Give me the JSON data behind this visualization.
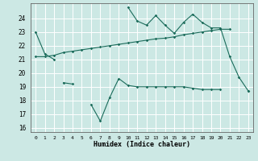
{
  "xlabel": "Humidex (Indice chaleur)",
  "bg_color": "#cce8e4",
  "line_color": "#1a6b5a",
  "grid_color": "#ffffff",
  "x": [
    0,
    1,
    2,
    3,
    4,
    5,
    6,
    7,
    8,
    9,
    10,
    11,
    12,
    13,
    14,
    15,
    16,
    17,
    18,
    19,
    20,
    21,
    22,
    23
  ],
  "y1": [
    23.0,
    21.4,
    21.0,
    null,
    null,
    null,
    null,
    null,
    null,
    null,
    24.8,
    23.8,
    23.5,
    24.2,
    23.5,
    22.9,
    23.7,
    24.3,
    23.7,
    23.3,
    23.3,
    21.2,
    19.7,
    18.7
  ],
  "y2": [
    21.2,
    21.2,
    21.3,
    21.5,
    21.6,
    21.7,
    21.8,
    21.9,
    22.0,
    22.1,
    22.2,
    22.3,
    22.4,
    22.5,
    22.55,
    22.65,
    22.8,
    22.9,
    23.0,
    23.1,
    23.2,
    23.2,
    null,
    null
  ],
  "y3": [
    null,
    null,
    null,
    19.3,
    19.2,
    null,
    17.7,
    16.5,
    18.2,
    19.6,
    19.1,
    19.0,
    19.0,
    19.0,
    19.0,
    19.0,
    19.0,
    18.9,
    18.8,
    18.8,
    18.8,
    null,
    null,
    18.7
  ],
  "ylim": [
    15.7,
    25.1
  ],
  "xlim": [
    -0.5,
    23.5
  ],
  "yticks": [
    16,
    17,
    18,
    19,
    20,
    21,
    22,
    23,
    24
  ],
  "xticks": [
    0,
    1,
    2,
    3,
    4,
    5,
    6,
    7,
    8,
    9,
    10,
    11,
    12,
    13,
    14,
    15,
    16,
    17,
    18,
    19,
    20,
    21,
    22,
    23
  ]
}
